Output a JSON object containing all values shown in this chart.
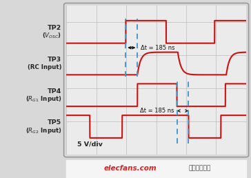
{
  "bg_color": "#d8d8d8",
  "plot_bg_color": "#ebebeb",
  "waveform_color": "#cc1111",
  "grid_color": "#bbbbbb",
  "dashed_line_color": "#4499cc",
  "text_color": "#111111",
  "label_color": "#222222",
  "fig_width": 3.64,
  "fig_height": 2.58,
  "dpi": 100,
  "annotation_top": "Δt = 185 ns",
  "annotation_bot": "Δt = 185 ns",
  "bottom_label": "5 V/div",
  "watermark": "elecfans.com",
  "watermark_color": "#dd2222",
  "watermark2": "）电子发烧友",
  "watermark2_color": "#444444",
  "channel_labels": [
    "TP2",
    "(V$_{OSC}$)",
    "TP3",
    "(RC Input)",
    "TP4",
    "(R$_{G1}$ Input)",
    "TP5",
    "(R$_{G2}$ Input)"
  ],
  "T": 10.0,
  "dl1": 3.3,
  "dl2": 3.95,
  "dl3": 6.15,
  "dl4": 6.8,
  "amp": 0.68,
  "channel_centers": [
    7.4,
    5.5,
    3.6,
    1.7
  ],
  "tau": 0.18
}
